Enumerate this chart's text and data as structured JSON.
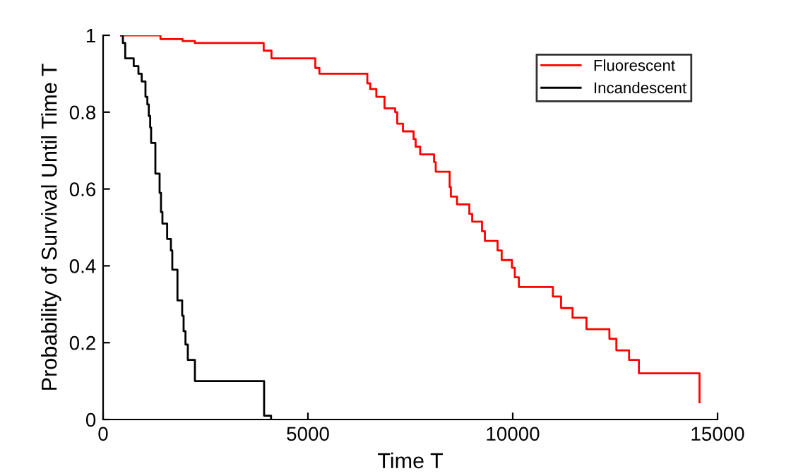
{
  "chart_data": {
    "type": "step",
    "xlabel": "Time T",
    "ylabel": "Probability of Survival Until Time T",
    "xlim": [
      0,
      15000
    ],
    "ylim": [
      0,
      1
    ],
    "xticks": [
      0,
      5000,
      10000,
      15000
    ],
    "yticks": [
      0,
      {
        "value": 0.2,
        "label": "0.2"
      },
      {
        "value": 0.4,
        "label": "0.4"
      },
      {
        "value": 0.6,
        "label": "0.6"
      },
      {
        "value": 0.8,
        "label": "0.8"
      },
      1
    ],
    "legend": "top right",
    "grid": false,
    "series": [
      {
        "name": "Fluorescent",
        "color": "#ff0000",
        "x": [
          437,
          1400,
          1820,
          1940,
          2240,
          3920,
          4110,
          5180,
          5280,
          6450,
          6520,
          6670,
          6870,
          7130,
          7180,
          7320,
          7580,
          7630,
          7740,
          8080,
          8120,
          8460,
          8490,
          8640,
          8940,
          9010,
          9250,
          9320,
          9630,
          9730,
          9980,
          10050,
          10150,
          10980,
          11180,
          11460,
          11800,
          12360,
          12530,
          12840,
          13080,
          14560
        ],
        "values": [
          1,
          0.99,
          0.99,
          0.985,
          0.98,
          0.96,
          0.94,
          0.915,
          0.9,
          0.875,
          0.86,
          0.84,
          0.81,
          0.8,
          0.77,
          0.75,
          0.73,
          0.71,
          0.69,
          0.67,
          0.645,
          0.605,
          0.58,
          0.56,
          0.535,
          0.515,
          0.49,
          0.465,
          0.44,
          0.415,
          0.395,
          0.37,
          0.345,
          0.32,
          0.29,
          0.265,
          0.235,
          0.21,
          0.18,
          0.155,
          0.12,
          0.045
        ]
      },
      {
        "name": "Incandescent",
        "color": "#000000",
        "x": [
          437,
          483,
          540,
          747,
          862,
          942,
          1034,
          1080,
          1115,
          1149,
          1172,
          1276,
          1379,
          1413,
          1448,
          1563,
          1655,
          1689,
          1815,
          1930,
          1965,
          2011,
          2068,
          2241,
          3930,
          4100
        ],
        "values": [
          1,
          0.98,
          0.94,
          0.92,
          0.9,
          0.88,
          0.84,
          0.82,
          0.79,
          0.76,
          0.72,
          0.64,
          0.59,
          0.54,
          0.51,
          0.47,
          0.44,
          0.39,
          0.31,
          0.27,
          0.23,
          0.195,
          0.155,
          0.1,
          0.01,
          0
        ]
      }
    ]
  }
}
